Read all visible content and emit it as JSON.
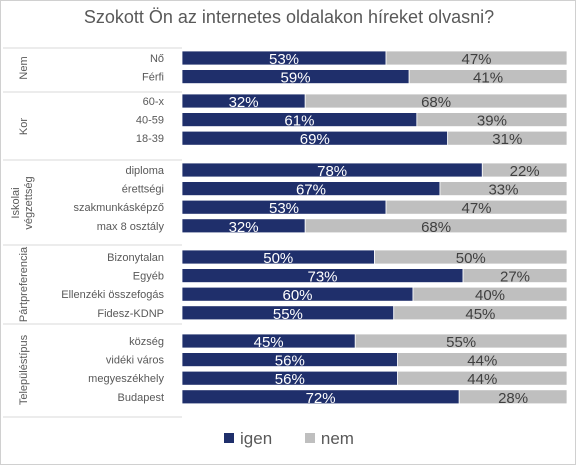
{
  "chart_data": {
    "type": "bar",
    "stacked": true,
    "orientation": "horizontal",
    "title": "Szokott Ön az internetes oldalakon híreket olvasni?",
    "colors": {
      "igen": "#1f2f6b",
      "nem": "#bfbfbf"
    },
    "legend_position": "bottom",
    "series": [
      {
        "name": "igen"
      },
      {
        "name": "nem"
      }
    ],
    "groups": [
      {
        "label": "Nem",
        "rows": [
          {
            "category": "Nő",
            "values": [
              53,
              47
            ],
            "labels": [
              "53%",
              "47%"
            ]
          },
          {
            "category": "Férfi",
            "values": [
              59,
              41
            ],
            "labels": [
              "59%",
              "41%"
            ]
          }
        ]
      },
      {
        "label": "Kor",
        "rows": [
          {
            "category": "60-x",
            "values": [
              32,
              68
            ],
            "labels": [
              "32%",
              "68%"
            ]
          },
          {
            "category": "40-59",
            "values": [
              61,
              39
            ],
            "labels": [
              "61%",
              "39%"
            ]
          },
          {
            "category": "18-39",
            "values": [
              69,
              31
            ],
            "labels": [
              "69%",
              "31%"
            ]
          }
        ]
      },
      {
        "label": "Iskolai végzettség",
        "rows": [
          {
            "category": "diploma",
            "values": [
              78,
              22
            ],
            "labels": [
              "78%",
              "22%"
            ]
          },
          {
            "category": "érettségi",
            "values": [
              67,
              33
            ],
            "labels": [
              "67%",
              "33%"
            ]
          },
          {
            "category": "szakmunkásképző",
            "values": [
              53,
              47
            ],
            "labels": [
              "53%",
              "47%"
            ]
          },
          {
            "category": "max 8 osztály",
            "values": [
              32,
              68
            ],
            "labels": [
              "32%",
              "68%"
            ]
          }
        ]
      },
      {
        "label": "Pártpreferencia",
        "rows": [
          {
            "category": "Bizonytalan",
            "values": [
              50,
              50
            ],
            "labels": [
              "50%",
              "50%"
            ]
          },
          {
            "category": "Egyéb",
            "values": [
              73,
              27
            ],
            "labels": [
              "73%",
              "27%"
            ]
          },
          {
            "category": "Ellenzéki összefogás",
            "values": [
              60,
              40
            ],
            "labels": [
              "60%",
              "40%"
            ]
          },
          {
            "category": "Fidesz-KDNP",
            "values": [
              55,
              45
            ],
            "labels": [
              "55%",
              "45%"
            ]
          }
        ]
      },
      {
        "label": "Településtípus",
        "rows": [
          {
            "category": "község",
            "values": [
              45,
              55
            ],
            "labels": [
              "45%",
              "55%"
            ]
          },
          {
            "category": "vidéki város",
            "values": [
              56,
              44
            ],
            "labels": [
              "56%",
              "44%"
            ]
          },
          {
            "category": "megyeszékhely",
            "values": [
              56,
              44
            ],
            "labels": [
              "56%",
              "44%"
            ]
          },
          {
            "category": "Budapest",
            "values": [
              72,
              28
            ],
            "labels": [
              "72%",
              "28%"
            ]
          }
        ]
      }
    ]
  }
}
